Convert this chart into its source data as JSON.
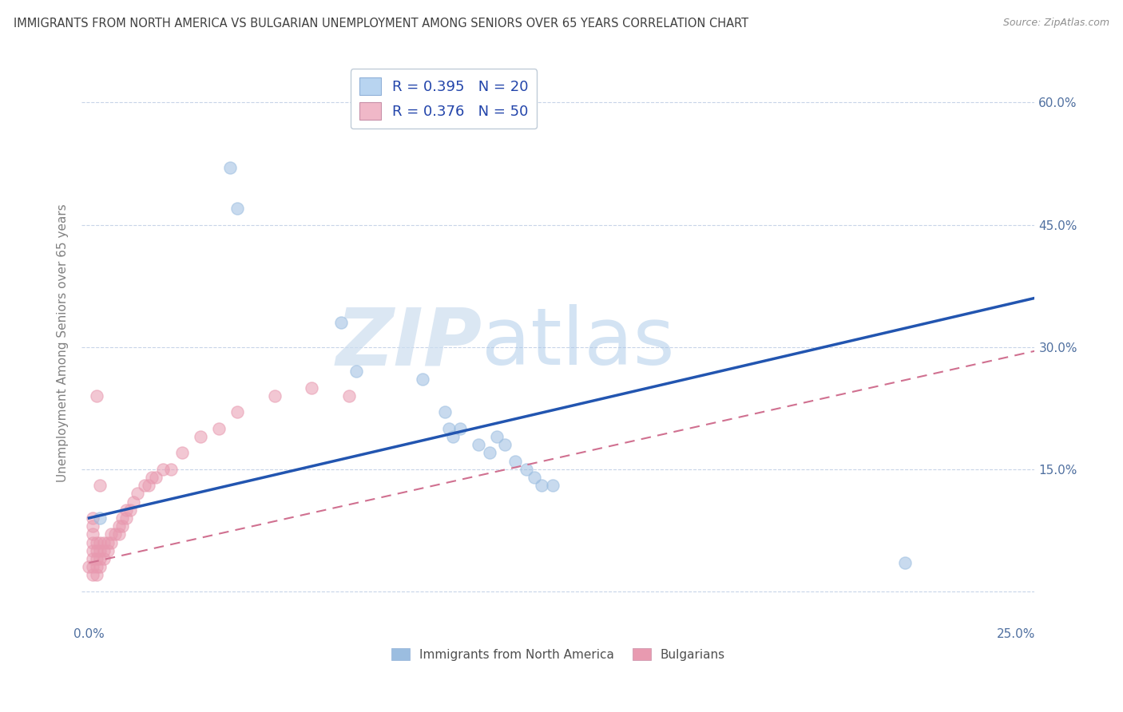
{
  "title": "IMMIGRANTS FROM NORTH AMERICA VS BULGARIAN UNEMPLOYMENT AMONG SENIORS OVER 65 YEARS CORRELATION CHART",
  "source": "Source: ZipAtlas.com",
  "ylabel": "Unemployment Among Seniors over 65 years",
  "xlabel": "",
  "xlim": [
    -0.002,
    0.255
  ],
  "ylim": [
    -0.04,
    0.65
  ],
  "xticks": [
    0.0,
    0.05,
    0.1,
    0.15,
    0.2,
    0.25
  ],
  "xtick_labels": [
    "0.0%",
    "",
    "",
    "",
    "",
    "25.0%"
  ],
  "ytick_labels_right": [
    "60.0%",
    "45.0%",
    "30.0%",
    "15.0%",
    ""
  ],
  "ytick_positions_right": [
    0.6,
    0.45,
    0.3,
    0.15,
    0.0
  ],
  "legend_entries": [
    {
      "label": "R = 0.395   N = 20",
      "color": "#b8d4f0"
    },
    {
      "label": "R = 0.376   N = 50",
      "color": "#f0b8c8"
    }
  ],
  "legend_label_blue": "Immigrants from North America",
  "legend_label_pink": "Bulgarians",
  "watermark_zip": "ZIP",
  "watermark_atlas": "atlas",
  "blue_scatter_x": [
    0.038,
    0.04,
    0.068,
    0.072,
    0.09,
    0.096,
    0.097,
    0.098,
    0.1,
    0.105,
    0.108,
    0.11,
    0.112,
    0.115,
    0.118,
    0.12,
    0.122,
    0.125,
    0.22,
    0.003
  ],
  "blue_scatter_y": [
    0.52,
    0.47,
    0.33,
    0.27,
    0.26,
    0.22,
    0.2,
    0.19,
    0.2,
    0.18,
    0.17,
    0.19,
    0.18,
    0.16,
    0.15,
    0.14,
    0.13,
    0.13,
    0.035,
    0.09
  ],
  "pink_scatter_x": [
    0.0,
    0.001,
    0.001,
    0.001,
    0.001,
    0.001,
    0.001,
    0.001,
    0.001,
    0.002,
    0.002,
    0.002,
    0.002,
    0.002,
    0.003,
    0.003,
    0.003,
    0.003,
    0.004,
    0.004,
    0.004,
    0.005,
    0.005,
    0.006,
    0.006,
    0.007,
    0.008,
    0.008,
    0.009,
    0.009,
    0.01,
    0.01,
    0.011,
    0.012,
    0.013,
    0.015,
    0.016,
    0.017,
    0.018,
    0.02,
    0.022,
    0.025,
    0.03,
    0.035,
    0.04,
    0.05,
    0.06,
    0.07,
    0.002,
    0.003
  ],
  "pink_scatter_y": [
    0.03,
    0.02,
    0.03,
    0.04,
    0.05,
    0.06,
    0.07,
    0.08,
    0.09,
    0.02,
    0.03,
    0.04,
    0.05,
    0.06,
    0.03,
    0.04,
    0.05,
    0.06,
    0.04,
    0.05,
    0.06,
    0.05,
    0.06,
    0.06,
    0.07,
    0.07,
    0.07,
    0.08,
    0.08,
    0.09,
    0.09,
    0.1,
    0.1,
    0.11,
    0.12,
    0.13,
    0.13,
    0.14,
    0.14,
    0.15,
    0.15,
    0.17,
    0.19,
    0.2,
    0.22,
    0.24,
    0.25,
    0.24,
    0.24,
    0.13
  ],
  "blue_line_x": [
    0.0,
    0.255
  ],
  "blue_line_y": [
    0.09,
    0.36
  ],
  "pink_line_x": [
    0.0,
    0.255
  ],
  "pink_line_y": [
    0.035,
    0.295
  ],
  "blue_color": "#9bbde0",
  "pink_color": "#e89ab0",
  "blue_line_color": "#2255b0",
  "pink_line_color": "#d07090",
  "scatter_alpha": 0.55,
  "scatter_size": 120,
  "grid_color": "#c8d4e8",
  "background_color": "#ffffff",
  "title_color": "#404040",
  "source_color": "#909090"
}
